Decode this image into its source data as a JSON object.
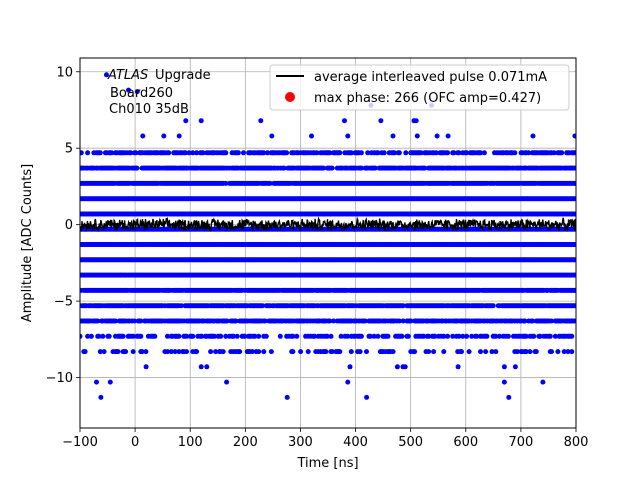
{
  "chart_data": {
    "type": "scatter",
    "xlabel": "Time [ns]",
    "ylabel": "Amplitude [ADC Counts]",
    "xlim": [
      -100,
      800
    ],
    "ylim": [
      -13.3,
      10.9
    ],
    "xticks": [
      -100,
      0,
      100,
      200,
      300,
      400,
      500,
      600,
      700,
      800
    ],
    "yticks": [
      -10,
      -5,
      0,
      5,
      10
    ],
    "grid": true,
    "legend_position": "top-right",
    "annotation": {
      "atlas": "ATLAS",
      "upgrade": "Upgrade",
      "board": "Board260",
      "channel": "Ch010 35dB"
    },
    "series": [
      {
        "name": "average interleaved pulse 0.071mA",
        "kind": "line",
        "color": "#000000",
        "x_range": [
          -100,
          800
        ],
        "mean": 0.0,
        "noise_amplitude": 0.45
      },
      {
        "name": "max phase: 266 (OFC amp=0.427)",
        "kind": "marker",
        "color": "#ff0000",
        "x": 266,
        "y": 0.427
      },
      {
        "name": "samples",
        "kind": "scatter",
        "color": "#0000ff",
        "levels": [
          {
            "y": 4.7,
            "density": 0.6
          },
          {
            "y": 3.7,
            "density": 0.85
          },
          {
            "y": 2.7,
            "density": 0.95
          },
          {
            "y": 1.7,
            "density": 1.0
          },
          {
            "y": 0.7,
            "density": 1.0
          },
          {
            "y": -0.3,
            "density": 1.0
          },
          {
            "y": -1.3,
            "density": 1.0
          },
          {
            "y": -2.3,
            "density": 1.0
          },
          {
            "y": -3.3,
            "density": 1.0
          },
          {
            "y": -4.3,
            "density": 0.95
          },
          {
            "y": -5.3,
            "density": 0.9
          },
          {
            "y": -6.3,
            "density": 0.75
          },
          {
            "y": -7.3,
            "density": 0.45
          },
          {
            "y": -8.3,
            "density": 0.25
          }
        ],
        "sparse_points": [
          {
            "x": -52,
            "y": 9.8
          },
          {
            "x": -12,
            "y": 8.8
          },
          {
            "x": 4,
            "y": 8.7
          },
          {
            "x": 14,
            "y": 5.8
          },
          {
            "x": 52,
            "y": 5.8
          },
          {
            "x": 80,
            "y": 5.8
          },
          {
            "x": 92,
            "y": 6.8
          },
          {
            "x": 120,
            "y": 6.8
          },
          {
            "x": 228,
            "y": 6.8
          },
          {
            "x": 248,
            "y": 5.8
          },
          {
            "x": 320,
            "y": 5.8
          },
          {
            "x": 380,
            "y": 6.8
          },
          {
            "x": 386,
            "y": 5.8
          },
          {
            "x": 428,
            "y": 7.8
          },
          {
            "x": 446,
            "y": 6.8
          },
          {
            "x": 468,
            "y": 5.8
          },
          {
            "x": 506,
            "y": 6.8
          },
          {
            "x": 510,
            "y": 6.8
          },
          {
            "x": 512,
            "y": 5.8
          },
          {
            "x": 538,
            "y": 7.8
          },
          {
            "x": 548,
            "y": 5.8
          },
          {
            "x": 568,
            "y": 5.8
          },
          {
            "x": 722,
            "y": 5.8
          },
          {
            "x": 798,
            "y": 5.8
          },
          {
            "x": 20,
            "y": -9.3
          },
          {
            "x": 120,
            "y": -9.3
          },
          {
            "x": 130,
            "y": -9.3
          },
          {
            "x": 390,
            "y": -9.3
          },
          {
            "x": 476,
            "y": -9.3
          },
          {
            "x": 486,
            "y": -9.3
          },
          {
            "x": 490,
            "y": -9.3
          },
          {
            "x": 586,
            "y": -9.3
          },
          {
            "x": 670,
            "y": -9.3
          },
          {
            "x": 690,
            "y": -9.3
          },
          {
            "x": -70,
            "y": -10.3
          },
          {
            "x": -45,
            "y": -10.3
          },
          {
            "x": 166,
            "y": -10.3
          },
          {
            "x": 386,
            "y": -10.3
          },
          {
            "x": 670,
            "y": -10.3
          },
          {
            "x": 740,
            "y": -10.3
          },
          {
            "x": -62,
            "y": -11.3
          },
          {
            "x": 276,
            "y": -11.3
          },
          {
            "x": 420,
            "y": -11.3
          },
          {
            "x": 678,
            "y": -11.3
          }
        ]
      }
    ]
  }
}
